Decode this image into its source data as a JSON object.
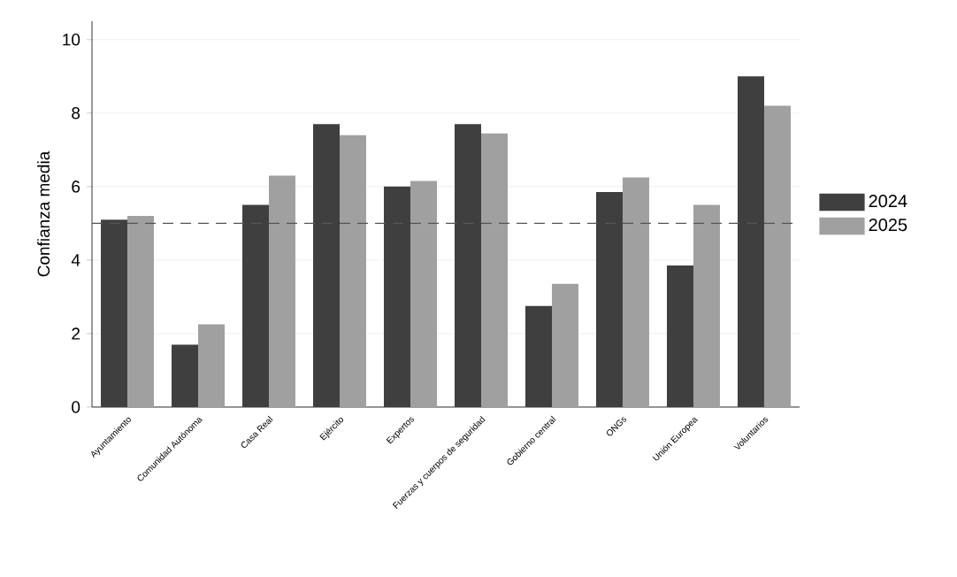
{
  "chart_data": {
    "type": "bar",
    "ylabel": "Confianza media",
    "categories": [
      "Ayuntamiento",
      "Comunidad Autónoma",
      "Casa Real",
      "Ejército",
      "Expertos",
      "Fuerzas y cuerpos de seguridad",
      "Gobierno central",
      "ONGs",
      "Unión Europea",
      "Voluntarios"
    ],
    "series": [
      {
        "name": "2024",
        "color": "#3f3f3f",
        "values": [
          5.1,
          1.7,
          5.5,
          7.7,
          6.0,
          7.7,
          2.75,
          5.85,
          3.85,
          9.0
        ]
      },
      {
        "name": "2025",
        "color": "#a0a0a0",
        "values": [
          5.2,
          2.25,
          6.3,
          7.4,
          6.15,
          7.45,
          3.35,
          6.25,
          5.5,
          8.2
        ]
      }
    ],
    "ylim": [
      0,
      10.5
    ],
    "yticks": [
      0,
      2,
      4,
      6,
      8,
      10
    ],
    "grid": "y",
    "legend": "right",
    "ref_lines": [
      {
        "axis": "y",
        "value": 5,
        "color": "#555555",
        "line_style": "dashed"
      }
    ]
  }
}
